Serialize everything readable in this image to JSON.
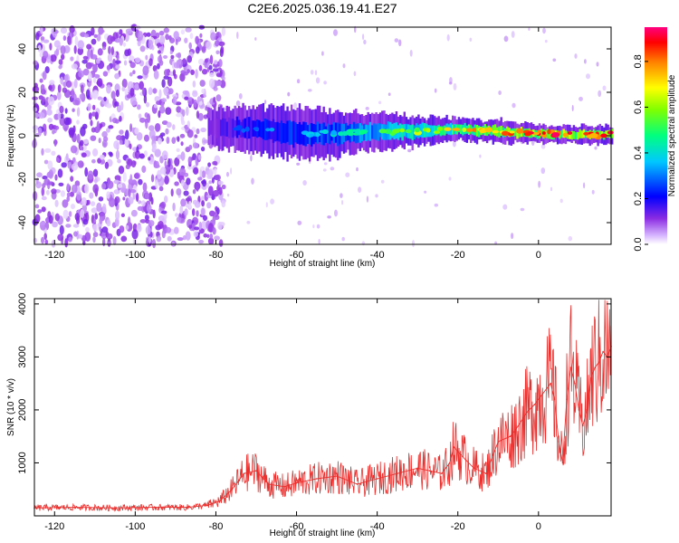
{
  "title": "C2E6.2025.036.19.41.E27",
  "chart_data": [
    {
      "type": "heatmap",
      "xlabel": "Height of straight line (km)",
      "ylabel": "Frequency (Hz)",
      "xlim": [
        -125,
        18
      ],
      "ylim": [
        -50,
        50
      ],
      "xticks": [
        "-120",
        "-100",
        "-80",
        "-60",
        "-40",
        "-20",
        "0"
      ],
      "yticks": [
        "40",
        "20",
        "0",
        "-20",
        "-40"
      ],
      "colorbar": {
        "label": "Normalized spectral amplitude",
        "range": [
          0.0,
          0.95
        ],
        "ticks": [
          "0.0",
          "0.2",
          "0.4",
          "0.6",
          "0.8"
        ]
      },
      "signal_band": [
        {
          "x": -82,
          "center": 4,
          "halfwidth": 5,
          "amplitude": 0.18
        },
        {
          "x": -70,
          "center": 3,
          "halfwidth": 6,
          "amplitude": 0.3
        },
        {
          "x": -60,
          "center": 1,
          "halfwidth": 7,
          "amplitude": 0.35
        },
        {
          "x": -50,
          "center": 1,
          "halfwidth": 6,
          "amplitude": 0.4
        },
        {
          "x": -40,
          "center": 2,
          "halfwidth": 5,
          "amplitude": 0.5
        },
        {
          "x": -30,
          "center": 2,
          "halfwidth": 4,
          "amplitude": 0.6
        },
        {
          "x": -20,
          "center": 3,
          "halfwidth": 3,
          "amplitude": 0.7
        },
        {
          "x": -10,
          "center": 2,
          "halfwidth": 3,
          "amplitude": 0.8
        },
        {
          "x": 0,
          "center": 1,
          "halfwidth": 2.5,
          "amplitude": 0.85
        },
        {
          "x": 10,
          "center": 0.5,
          "halfwidth": 2.5,
          "amplitude": 0.88
        },
        {
          "x": 18,
          "center": 0.5,
          "halfwidth": 2.5,
          "amplitude": 0.85
        }
      ]
    },
    {
      "type": "line",
      "xlabel": "Height of straight line (km)",
      "ylabel": "SNR (10 * v/v)",
      "xlim": [
        -125,
        18
      ],
      "ylim": [
        0,
        4100
      ],
      "xticks": [
        "-120",
        "-100",
        "-80",
        "-60",
        "-40",
        "-20",
        "0"
      ],
      "yticks": [
        "4000",
        "3000",
        "2000",
        "1000"
      ],
      "color": "#e8302e",
      "series": [
        {
          "x": [
            -125,
            -115,
            -105,
            -95,
            -87,
            -82,
            -79,
            -76,
            -73,
            -70,
            -67,
            -63,
            -60,
            -55,
            -50,
            -45,
            -40,
            -35,
            -30,
            -27,
            -24,
            -22,
            -21,
            -18,
            -16,
            -13,
            -10,
            -7,
            -5,
            -3,
            -1,
            1,
            3,
            4,
            5,
            6,
            7,
            8,
            9,
            10,
            11,
            12,
            13,
            14,
            15,
            16,
            17,
            18
          ],
          "y": [
            150,
            160,
            150,
            160,
            160,
            200,
            280,
            500,
            800,
            850,
            600,
            550,
            620,
            700,
            750,
            600,
            700,
            800,
            900,
            850,
            800,
            1000,
            1300,
            1050,
            900,
            800,
            1400,
            1500,
            1700,
            1950,
            2100,
            2300,
            2500,
            2200,
            1400,
            1000,
            2200,
            2800,
            2500,
            2000,
            1700,
            2000,
            2600,
            2800,
            2900,
            3100,
            3000,
            3200
          ]
        }
      ]
    }
  ]
}
